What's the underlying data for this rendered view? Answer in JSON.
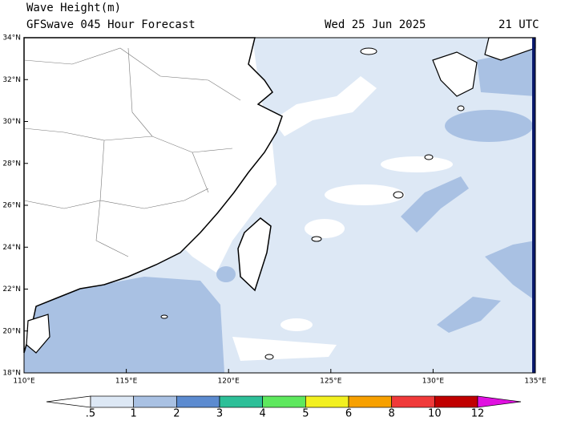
{
  "header": {
    "title": "Wave Height(m)",
    "subtitle": "GFSwave 045 Hour Forecast",
    "date": "Wed 25 Jun 2025",
    "time": "21 UTC"
  },
  "map": {
    "lat_labels": [
      "34°N",
      "32°N",
      "30°N",
      "28°N",
      "26°N",
      "24°N",
      "22°N",
      "20°N",
      "18°N"
    ],
    "lon_labels": [
      "110°E",
      "115°E",
      "120°E",
      "125°E",
      "130°E",
      "135°E"
    ]
  },
  "colorbar": {
    "labels": [
      ".5",
      "1",
      "2",
      "3",
      "4",
      "5",
      "6",
      "8",
      "10",
      "12"
    ],
    "colors": [
      "#ffffff",
      "#dde8f5",
      "#a9c1e3",
      "#5c8bd0",
      "#2dbf98",
      "#5ee85e",
      "#f2f020",
      "#f7a000",
      "#f03a3a",
      "#c00000",
      "#e010e0"
    ]
  }
}
